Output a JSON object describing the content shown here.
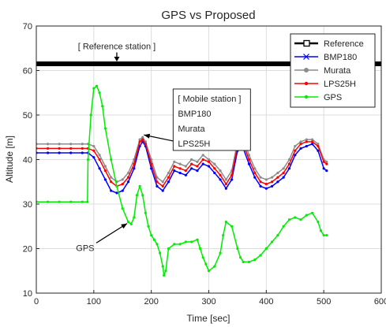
{
  "chart_data": {
    "type": "line",
    "title": "GPS vs Proposed",
    "xlabel": "Time [sec]",
    "ylabel": "Altitude [m]",
    "xlim": [
      0,
      600
    ],
    "ylim": [
      10,
      70
    ],
    "xticks": [
      0,
      100,
      200,
      300,
      400,
      500,
      600
    ],
    "yticks": [
      10,
      20,
      30,
      40,
      50,
      60,
      70
    ],
    "grid": true,
    "legend_position": "top-right",
    "series": [
      {
        "name": "Reference",
        "color": "#000000",
        "marker": "square",
        "x": [
          0,
          600
        ],
        "y": [
          61.5,
          61.5
        ]
      },
      {
        "name": "BMP180",
        "color": "#0000ff",
        "marker": "star",
        "x": [
          0,
          20,
          40,
          60,
          80,
          90,
          100,
          110,
          120,
          130,
          140,
          150,
          160,
          170,
          180,
          185,
          190,
          200,
          210,
          220,
          230,
          240,
          250,
          260,
          270,
          280,
          290,
          300,
          310,
          320,
          330,
          340,
          350,
          355,
          360,
          370,
          380,
          390,
          400,
          410,
          420,
          430,
          440,
          450,
          460,
          470,
          480,
          490,
          500,
          505
        ],
        "y": [
          41.5,
          41.5,
          41.5,
          41.5,
          41.5,
          41.5,
          40.5,
          38,
          35.5,
          33,
          32.5,
          33,
          35,
          38,
          43,
          44,
          43,
          38,
          34,
          33,
          35,
          37.5,
          37,
          36.5,
          38,
          37.5,
          39,
          38.5,
          37,
          35.5,
          33.5,
          35.5,
          42,
          44,
          42.5,
          39,
          36,
          34,
          33.5,
          34,
          35,
          36,
          38,
          41,
          42.5,
          43,
          43.5,
          42,
          38,
          37.5
        ]
      },
      {
        "name": "Murata",
        "color": "#8c8c8c",
        "marker": "circle",
        "x": [
          0,
          20,
          40,
          60,
          80,
          90,
          100,
          110,
          120,
          130,
          140,
          150,
          160,
          170,
          180,
          185,
          190,
          200,
          210,
          220,
          230,
          240,
          250,
          260,
          270,
          280,
          290,
          300,
          310,
          320,
          330,
          340,
          350,
          355,
          360,
          370,
          380,
          390,
          400,
          410,
          420,
          430,
          440,
          450,
          460,
          470,
          480,
          490,
          500,
          505
        ],
        "y": [
          43.5,
          43.5,
          43.5,
          43.5,
          43.5,
          43.5,
          43,
          41,
          38.5,
          36,
          35,
          35.5,
          37,
          40,
          44.5,
          45,
          44,
          40,
          36,
          35,
          37,
          39.5,
          39,
          38.5,
          40,
          39.5,
          41,
          40,
          39,
          37.5,
          35.5,
          37.5,
          44,
          46,
          44.5,
          41,
          38,
          36,
          35.5,
          36,
          37,
          38,
          40,
          43,
          44,
          44.5,
          44.5,
          43.5,
          40,
          39.5
        ]
      },
      {
        "name": "LPS25H",
        "color": "#ff0000",
        "marker": "dot",
        "x": [
          0,
          20,
          40,
          60,
          80,
          90,
          100,
          110,
          120,
          130,
          140,
          150,
          160,
          170,
          180,
          185,
          190,
          200,
          210,
          220,
          230,
          240,
          250,
          260,
          270,
          280,
          290,
          300,
          310,
          320,
          330,
          340,
          350,
          355,
          360,
          370,
          380,
          390,
          400,
          410,
          420,
          430,
          440,
          450,
          460,
          470,
          480,
          490,
          500,
          505
        ],
        "y": [
          42.5,
          42.5,
          42.5,
          42.5,
          42.5,
          42.5,
          42,
          40,
          37.5,
          35,
          34,
          34.5,
          36,
          39,
          44,
          44.5,
          43.5,
          39,
          35,
          34,
          36,
          38.5,
          38,
          37.5,
          39,
          38.5,
          40,
          39.5,
          38,
          36.5,
          34.5,
          36.5,
          43,
          45,
          43.5,
          40,
          37,
          35,
          34.5,
          35,
          36,
          37,
          39,
          42,
          43.5,
          44,
          44,
          43,
          39.5,
          39
        ]
      },
      {
        "name": "GPS",
        "color": "#00ee00",
        "marker": "dot",
        "x": [
          0,
          20,
          40,
          60,
          80,
          89,
          90,
          95,
          100,
          105,
          110,
          115,
          120,
          130,
          140,
          150,
          160,
          165,
          170,
          175,
          180,
          185,
          190,
          195,
          200,
          205,
          210,
          215,
          220,
          222,
          225,
          230,
          240,
          250,
          260,
          270,
          280,
          285,
          290,
          295,
          300,
          310,
          320,
          325,
          330,
          340,
          350,
          355,
          360,
          370,
          380,
          390,
          400,
          410,
          420,
          430,
          440,
          450,
          460,
          470,
          480,
          490,
          495,
          500,
          505
        ],
        "y": [
          30.5,
          30.5,
          30.5,
          30.5,
          30.5,
          30.5,
          40,
          50,
          56,
          56.5,
          55,
          52,
          47,
          40,
          34,
          29,
          26,
          25.5,
          27,
          32,
          34,
          32,
          28,
          25,
          23,
          22,
          21,
          19,
          16,
          14,
          15,
          20,
          21,
          21,
          21.5,
          21.5,
          22,
          20,
          18,
          16.5,
          15,
          16,
          19,
          23,
          26,
          25,
          20,
          18,
          17,
          17,
          17.5,
          18.5,
          20,
          21.5,
          23,
          25,
          26.5,
          27,
          26.5,
          27.5,
          28,
          26,
          24,
          23,
          23
        ]
      }
    ],
    "annotations": [
      {
        "text": "[ Reference station ]",
        "x": 140,
        "y": 63
      },
      {
        "lines": [
          "[ Mobile station ]",
          "BMP180",
          "Murata",
          "LPS25H"
        ],
        "x": 238,
        "y": 47,
        "arrow_to": [
          183,
          45
        ]
      },
      {
        "text": "GPS",
        "x": 85,
        "y": 19.5,
        "arrow_to": [
          158,
          26
        ]
      }
    ]
  }
}
